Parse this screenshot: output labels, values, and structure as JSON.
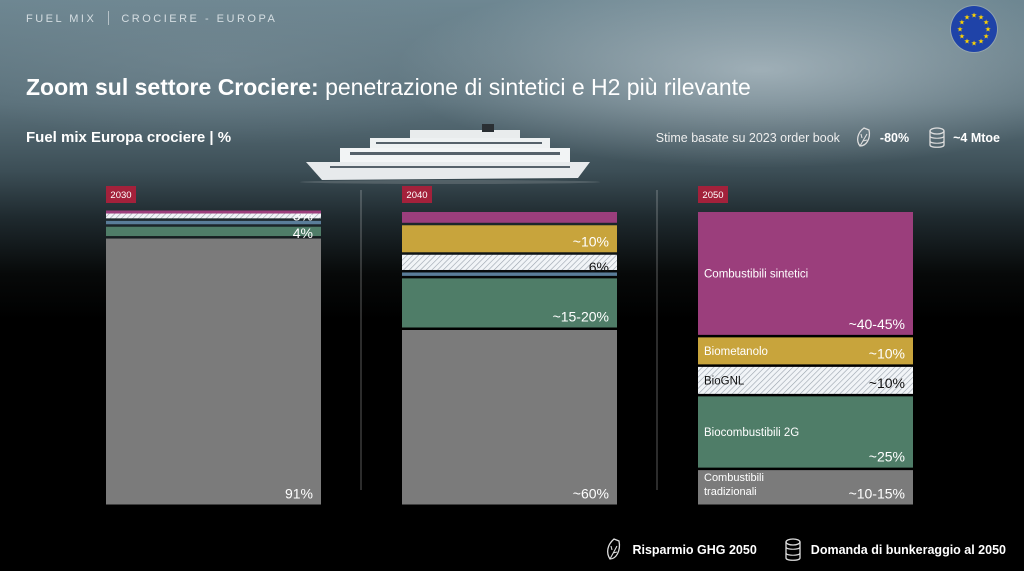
{
  "breadcrumb": {
    "part1": "FUEL MIX",
    "part2": "CROCIERE - EUROPA"
  },
  "title": {
    "bold": "Zoom sul settore Crociere:",
    "regular": " penetrazione di sintetici e H2 più rilevante"
  },
  "subtitle": "Fuel mix Europa crociere | %",
  "header_note": "Stime basate su 2023 order book",
  "header_ghg_value": "-80%",
  "header_demand_value": "~4 Mtoe",
  "legend": {
    "ghg": "Risparmio GHG 2050",
    "demand": "Domanda di bunkeraggio al  2050"
  },
  "icons": {
    "leaf": "leaf-icon",
    "database": "database-icon",
    "flag": "eu-flag-icon"
  },
  "colors": {
    "synthetic": "#9b3e7c",
    "biomethanol": "#c8a43c",
    "biolng": "#e9eef3",
    "hvo": "#5a7d99",
    "biofuel2g": "#4f7d68",
    "traditional": "#7b7b7b",
    "year_badge": "#a3213b"
  },
  "chart_data": {
    "type": "bar",
    "stacked": true,
    "categories": [
      "2030",
      "2040",
      "2050"
    ],
    "series": [
      {
        "name": "Combustibili tradizionali",
        "key": "traditional",
        "values": [
          91,
          60,
          12.5
        ],
        "labels": [
          "91%",
          "~60%",
          "~10-15%"
        ]
      },
      {
        "name": "Biocombustibili 2G",
        "key": "biofuel2g",
        "values": [
          4,
          17.5,
          25
        ],
        "labels": [
          "4%",
          "~15-20%",
          "~25%"
        ]
      },
      {
        "name": "",
        "key": "hvo",
        "values": [
          2,
          2,
          0
        ],
        "labels": [
          "",
          "",
          ""
        ]
      },
      {
        "name": "BioGNL",
        "key": "biolng",
        "values": [
          3,
          6,
          10
        ],
        "labels": [
          "3%",
          "6%",
          "~10%"
        ]
      },
      {
        "name": "Biometanolo",
        "key": "biomethanol",
        "values": [
          0,
          10,
          10
        ],
        "labels": [
          "",
          "~10%",
          "~10%"
        ]
      },
      {
        "name": "Combustibili sintetici",
        "key": "synthetic",
        "values": [
          0.5,
          4.5,
          42.5
        ],
        "labels": [
          "",
          "",
          "~40-45%"
        ]
      }
    ],
    "inline_names_2050": {
      "synthetic": "Combustibili sintetici",
      "biomethanol": "Biometanolo",
      "biolng": "BioGNL",
      "biofuel2g": "Biocombustibili 2G",
      "traditional_line1": "Combustibili",
      "traditional_line2": "tradizionali"
    },
    "ylim": [
      0,
      100
    ]
  }
}
